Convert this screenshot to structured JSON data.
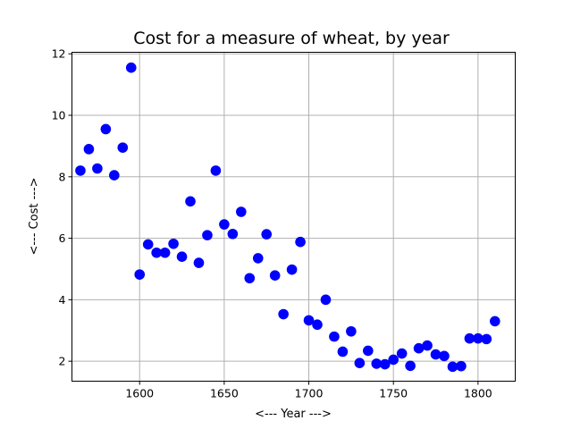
{
  "chart_data": {
    "type": "scatter",
    "title": "Cost for a measure of wheat, by year",
    "xlabel": "<--- Year --->",
    "ylabel": "<--- Cost --->",
    "xlim": [
      1560,
      1822
    ],
    "ylim": [
      1.35,
      12.05
    ],
    "xticks": [
      1600,
      1650,
      1700,
      1750,
      1800
    ],
    "yticks": [
      2,
      4,
      6,
      8,
      10,
      12
    ],
    "grid": true,
    "marker_color": "#0000ff",
    "series": [
      {
        "x": [
          1565,
          1570,
          1575,
          1580,
          1585,
          1590,
          1595,
          1600,
          1605,
          1610,
          1615,
          1620,
          1625,
          1630,
          1635,
          1640,
          1645,
          1650,
          1655,
          1660,
          1665,
          1670,
          1675,
          1680,
          1685,
          1690,
          1695,
          1700,
          1705,
          1710,
          1715,
          1720,
          1725,
          1730,
          1735,
          1740,
          1745,
          1750,
          1755,
          1760,
          1765,
          1770,
          1775,
          1780,
          1785,
          1790,
          1795,
          1800,
          1805,
          1810
        ],
        "y": [
          8.2,
          8.9,
          8.27,
          9.55,
          8.05,
          8.95,
          11.55,
          4.82,
          5.8,
          5.53,
          5.53,
          5.82,
          5.4,
          7.2,
          5.2,
          6.1,
          8.2,
          6.45,
          6.14,
          6.86,
          4.7,
          5.35,
          6.13,
          4.79,
          3.53,
          4.98,
          5.88,
          3.33,
          3.19,
          4.0,
          2.8,
          2.31,
          2.97,
          1.94,
          2.34,
          1.92,
          1.9,
          2.05,
          2.25,
          1.85,
          2.42,
          2.51,
          2.22,
          2.17,
          1.82,
          1.84,
          2.74,
          2.74,
          2.72,
          3.3
        ]
      }
    ]
  }
}
